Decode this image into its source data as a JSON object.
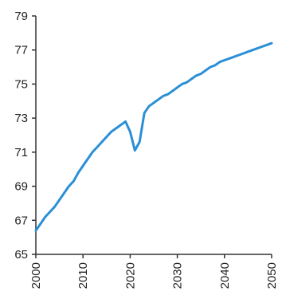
{
  "chart_data": {
    "type": "line",
    "title": "",
    "xlabel": "",
    "ylabel": "",
    "xlim": [
      2000,
      2050
    ],
    "ylim": [
      65,
      79
    ],
    "grid": false,
    "x_ticks": [
      "2000",
      "2010",
      "2020",
      "2030",
      "2040",
      "2050"
    ],
    "y_ticks": [
      "65",
      "67",
      "69",
      "71",
      "73",
      "75",
      "77",
      "79"
    ],
    "series": [
      {
        "color": "#2b8fd6",
        "x": [
          2000,
          2001,
          2002,
          2003,
          2004,
          2005,
          2006,
          2007,
          2008,
          2009,
          2010,
          2011,
          2012,
          2013,
          2014,
          2015,
          2016,
          2017,
          2018,
          2019,
          2020,
          2021,
          2022,
          2023,
          2024,
          2025,
          2026,
          2027,
          2028,
          2029,
          2030,
          2031,
          2032,
          2033,
          2034,
          2035,
          2036,
          2037,
          2038,
          2039,
          2040,
          2041,
          2042,
          2043,
          2044,
          2045,
          2046,
          2047,
          2048,
          2049,
          2050
        ],
        "values": [
          66.4,
          66.8,
          67.2,
          67.5,
          67.8,
          68.2,
          68.6,
          69.0,
          69.3,
          69.8,
          70.2,
          70.6,
          71.0,
          71.3,
          71.6,
          71.9,
          72.2,
          72.4,
          72.6,
          72.8,
          72.2,
          71.1,
          71.6,
          73.3,
          73.7,
          73.9,
          74.1,
          74.3,
          74.4,
          74.6,
          74.8,
          75.0,
          75.1,
          75.3,
          75.5,
          75.6,
          75.8,
          76.0,
          76.1,
          76.3,
          76.4,
          76.5,
          76.6,
          76.7,
          76.8,
          76.9,
          77.0,
          77.1,
          77.2,
          77.3,
          77.4
        ]
      }
    ]
  }
}
